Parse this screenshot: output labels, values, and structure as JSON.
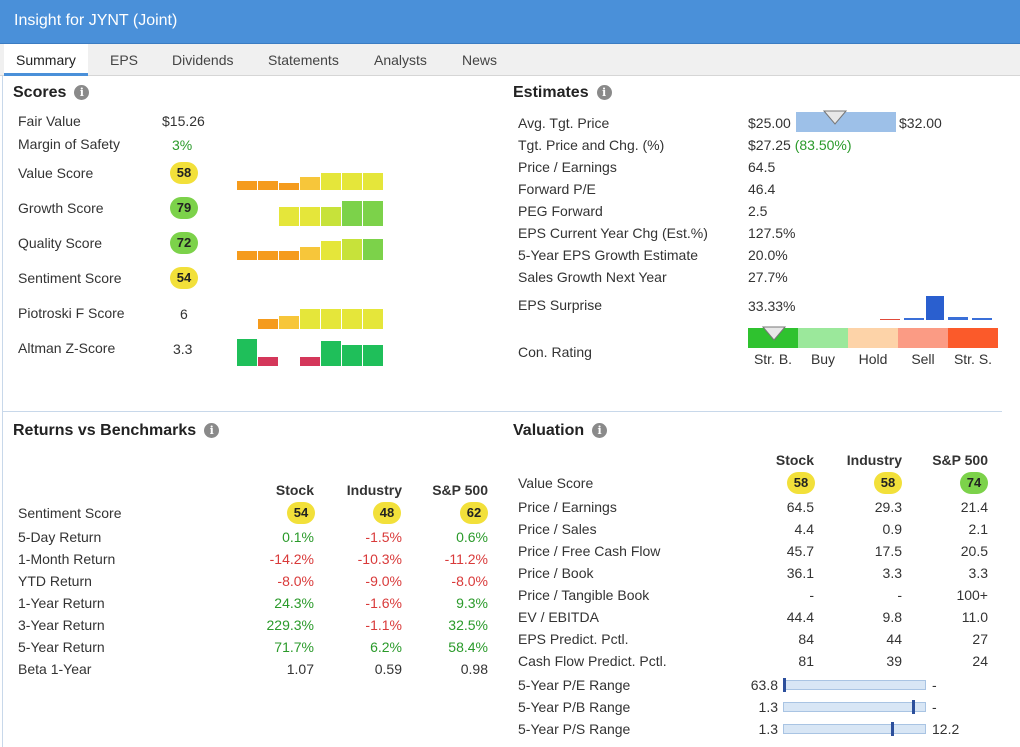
{
  "window": {
    "title": "Insight for JYNT (Joint)"
  },
  "tabs": [
    "Summary",
    "EPS",
    "Dividends",
    "Statements",
    "Analysts",
    "News"
  ],
  "scores": {
    "title": "Scores",
    "fair_value_label": "Fair Value",
    "fair_value": "$15.26",
    "margin_label": "Margin of Safety",
    "margin": "3%",
    "value_label": "Value Score",
    "value": "58",
    "growth_label": "Growth Score",
    "growth": "79",
    "quality_label": "Quality Score",
    "quality": "72",
    "sentiment_label": "Sentiment Score",
    "sentiment": "54",
    "piotroski_label": "Piotroski F Score",
    "piotroski": "6",
    "altman_label": "Altman Z-Score",
    "altman": "3.3"
  },
  "estimates": {
    "title": "Estimates",
    "rows": [
      {
        "label": "Avg. Tgt. Price",
        "value": ""
      },
      {
        "label": "Tgt. Price and Chg. (%)",
        "value": "$27.25",
        "extra": "(83.50%)"
      },
      {
        "label": "Price / Earnings",
        "value": "64.5"
      },
      {
        "label": "Forward P/E",
        "value": "46.4"
      },
      {
        "label": "PEG Forward",
        "value": "2.5"
      },
      {
        "label": "EPS Current Year Chg (Est.%)",
        "value": "127.5%"
      },
      {
        "label": "5-Year EPS Growth Estimate",
        "value": "20.0%"
      },
      {
        "label": "Sales Growth Next Year",
        "value": "27.7%"
      },
      {
        "label": "EPS Surprise",
        "value": "33.33%"
      },
      {
        "label": "Con. Rating",
        "value": ""
      }
    ],
    "tgt_low": "$25.00",
    "tgt_high": "$32.00",
    "rating_labels": [
      "Str. B.",
      "Buy",
      "Hold",
      "Sell",
      "Str. S."
    ],
    "rating_colors": [
      "#2fc22f",
      "#9be89b",
      "#fdd3a8",
      "#fb9b84",
      "#fb5a2a"
    ]
  },
  "returns": {
    "title": "Returns vs Benchmarks",
    "headers": [
      "Stock",
      "Industry",
      "S&P 500"
    ],
    "sentiment_label": "Sentiment Score",
    "sentiment": [
      "54",
      "48",
      "62"
    ],
    "rows": [
      {
        "label": "5-Day Return",
        "values": [
          "0.1%",
          "-1.5%",
          "0.6%"
        ],
        "colors": [
          "green",
          "red",
          "green"
        ]
      },
      {
        "label": "1-Month Return",
        "values": [
          "-14.2%",
          "-10.3%",
          "-11.2%"
        ],
        "colors": [
          "red",
          "red",
          "red"
        ]
      },
      {
        "label": "YTD Return",
        "values": [
          "-8.0%",
          "-9.0%",
          "-8.0%"
        ],
        "colors": [
          "red",
          "red",
          "red"
        ]
      },
      {
        "label": "1-Year Return",
        "values": [
          "24.3%",
          "-1.6%",
          "9.3%"
        ],
        "colors": [
          "green",
          "red",
          "green"
        ]
      },
      {
        "label": "3-Year Return",
        "values": [
          "229.3%",
          "-1.1%",
          "32.5%"
        ],
        "colors": [
          "green",
          "red",
          "green"
        ]
      },
      {
        "label": "5-Year Return",
        "values": [
          "71.7%",
          "6.2%",
          "58.4%"
        ],
        "colors": [
          "green",
          "green",
          "green"
        ]
      },
      {
        "label": "Beta 1-Year",
        "values": [
          "1.07",
          "0.59",
          "0.98"
        ],
        "colors": [
          "",
          "",
          ""
        ]
      }
    ]
  },
  "valuation": {
    "title": "Valuation",
    "headers": [
      "Stock",
      "Industry",
      "S&P 500"
    ],
    "value_score_label": "Value Score",
    "value_score": [
      "58",
      "58",
      "74"
    ],
    "rows": [
      {
        "label": "Price / Earnings",
        "values": [
          "64.5",
          "29.3",
          "21.4"
        ]
      },
      {
        "label": "Price / Sales",
        "values": [
          "4.4",
          "0.9",
          "2.1"
        ]
      },
      {
        "label": "Price / Free Cash Flow",
        "values": [
          "45.7",
          "17.5",
          "20.5"
        ]
      },
      {
        "label": "Price / Book",
        "values": [
          "36.1",
          "3.3",
          "3.3"
        ]
      },
      {
        "label": "Price / Tangible Book",
        "values": [
          "-",
          "-",
          "100+"
        ]
      },
      {
        "label": "EV / EBITDA",
        "values": [
          "44.4",
          "9.8",
          "11.0"
        ]
      },
      {
        "label": "EPS Predict. Pctl.",
        "values": [
          "84",
          "44",
          "27"
        ]
      },
      {
        "label": "Cash Flow Predict. Pctl.",
        "values": [
          "81",
          "39",
          "24"
        ]
      }
    ],
    "ranges": [
      {
        "label": "5-Year P/E Range",
        "low": "63.8",
        "high": "-",
        "pos": 0.0
      },
      {
        "label": "5-Year P/B Range",
        "low": "1.3",
        "high": "-",
        "pos": 0.92
      },
      {
        "label": "5-Year P/S Range",
        "low": "1.3",
        "high": "12.2",
        "pos": 0.77
      }
    ]
  }
}
